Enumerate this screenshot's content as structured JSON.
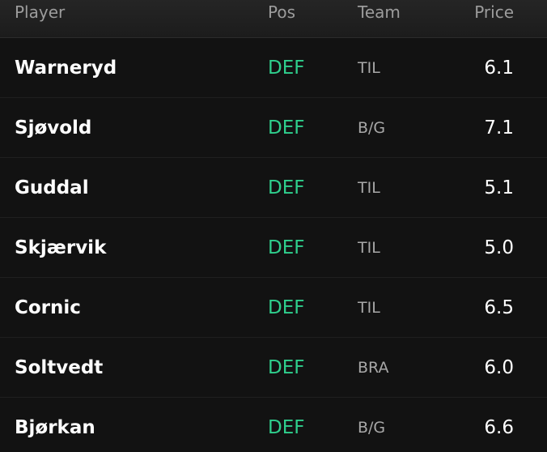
{
  "table": {
    "header": [
      "Player",
      "Pos",
      "Team",
      "Price"
    ],
    "rows": [
      [
        "Warneryd",
        "DEF",
        "TIL",
        "6.1"
      ],
      [
        "Sjøvold",
        "DEF",
        "B/G",
        "7.1"
      ],
      [
        "Guddal",
        "DEF",
        "TIL",
        "5.1"
      ],
      [
        "Skjærvik",
        "DEF",
        "TIL",
        "5.0"
      ],
      [
        "Cornic",
        "DEF",
        "TIL",
        "6.5"
      ],
      [
        "Soltvedt",
        "DEF",
        "BRA",
        "6.0"
      ],
      [
        "Bjørkan",
        "DEF",
        "B/G",
        "6.6"
      ]
    ]
  }
}
